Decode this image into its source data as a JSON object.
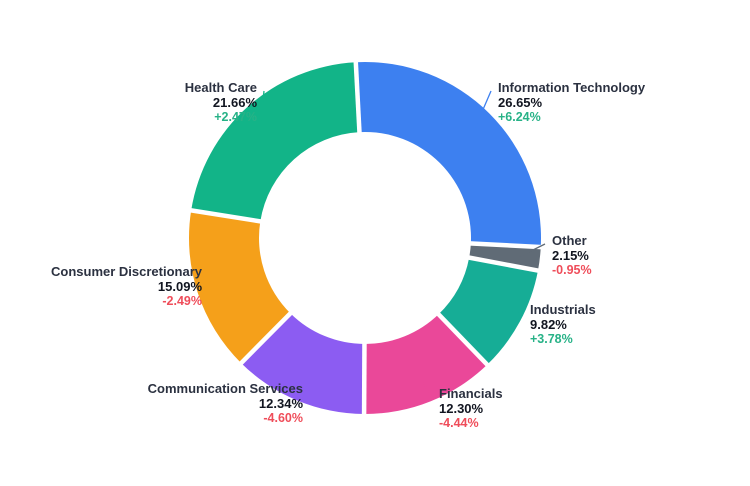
{
  "chart_data": {
    "type": "pie",
    "subtype": "donut",
    "title": "",
    "unit": "%",
    "legend_position": "outside-callouts",
    "donut_hole": true,
    "series": [
      {
        "label": "Information Technology",
        "value": 26.65,
        "value_label": "26.65%",
        "change": "+6.24%",
        "change_direction": "up",
        "color": "#3D80F0"
      },
      {
        "label": "Other",
        "value": 2.15,
        "value_label": "2.15%",
        "change": "-0.95%",
        "change_direction": "down",
        "color": "#606B76"
      },
      {
        "label": "Industrials",
        "value": 9.82,
        "value_label": "9.82%",
        "change": "+3.78%",
        "change_direction": "up",
        "color": "#16AD96"
      },
      {
        "label": "Financials",
        "value": 12.3,
        "value_label": "12.30%",
        "change": "-4.44%",
        "change_direction": "down",
        "color": "#EA4899"
      },
      {
        "label": "Communication Services",
        "value": 12.34,
        "value_label": "12.34%",
        "change": "-4.60%",
        "change_direction": "down",
        "color": "#8C5CF2"
      },
      {
        "label": "Consumer Discretionary",
        "value": 15.09,
        "value_label": "15.09%",
        "change": "-2.49%",
        "change_direction": "down",
        "color": "#F5A01A"
      },
      {
        "label": "Health Care",
        "value": 21.66,
        "value_label": "21.66%",
        "change": "+2.47%",
        "change_direction": "up",
        "color": "#12B488"
      }
    ],
    "colors": {
      "positive_text": "#27B287",
      "negative_text": "#EF4D5A",
      "label_text": "#2B3140",
      "value_text": "#111520",
      "background": "#FFFFFF"
    }
  }
}
